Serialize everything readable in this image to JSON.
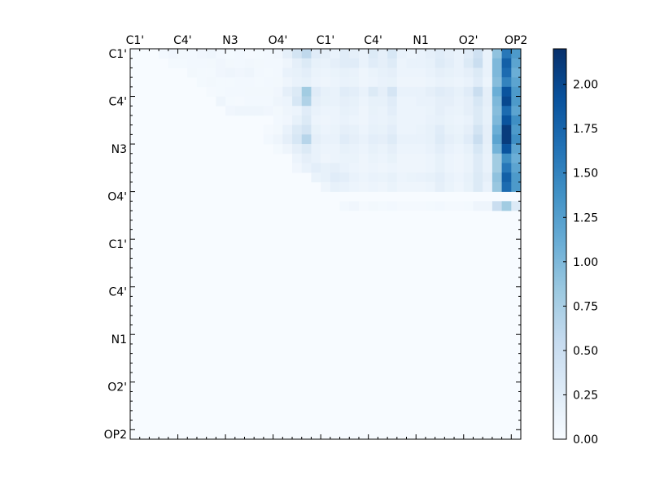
{
  "chart_data": {
    "type": "heatmap",
    "title": "",
    "xlabel": "",
    "ylabel": "",
    "matrix_size": 41,
    "x_tick_labels": [
      "C1'",
      "C4'",
      "N3",
      "O4'",
      "C1'",
      "C4'",
      "N1",
      "O2'",
      "OP2"
    ],
    "y_tick_labels": [
      "C1'",
      "C4'",
      "N3",
      "O4'",
      "C1'",
      "C4'",
      "N1",
      "O2'",
      "OP2"
    ],
    "colorbar": {
      "min": 0.0,
      "max": 2.2,
      "tick_labels": [
        "0.00",
        "0.25",
        "0.50",
        "0.75",
        "1.00",
        "1.25",
        "1.50",
        "1.75",
        "2.00"
      ],
      "tick_values": [
        0.0,
        0.25,
        0.5,
        0.75,
        1.0,
        1.25,
        1.5,
        1.75,
        2.0
      ],
      "colormap": "Blues"
    },
    "rows": [
      [
        0,
        0,
        0,
        0.05,
        0.08,
        0.06,
        0.05,
        0.08,
        0.1,
        0.05,
        0.04,
        0.05,
        0.03,
        0.04,
        0.05,
        0.08,
        0.2,
        0.4,
        0.6,
        0.25,
        0.2,
        0.15,
        0.25,
        0.2,
        0.15,
        0.3,
        0.2,
        0.35,
        0.15,
        0.12,
        0.15,
        0.2,
        0.25,
        0.2,
        0.15,
        0.25,
        0.45,
        0.15,
        0.9,
        1.6,
        1.3
      ],
      [
        0,
        0,
        0,
        0,
        0.04,
        0.04,
        0.05,
        0.05,
        0.06,
        0.08,
        0.06,
        0.05,
        0.07,
        0.06,
        0.05,
        0.05,
        0.1,
        0.2,
        0.3,
        0.18,
        0.15,
        0.2,
        0.25,
        0.25,
        0.15,
        0.25,
        0.2,
        0.28,
        0.12,
        0.15,
        0.15,
        0.18,
        0.28,
        0.22,
        0.15,
        0.3,
        0.5,
        0.15,
        1.0,
        1.8,
        1.2
      ],
      [
        0,
        0,
        0,
        0,
        0,
        0,
        0.06,
        0.04,
        0.04,
        0.08,
        0.1,
        0.08,
        0.1,
        0.05,
        0.04,
        0.05,
        0.15,
        0.18,
        0.22,
        0.14,
        0.12,
        0.14,
        0.18,
        0.15,
        0.1,
        0.14,
        0.18,
        0.2,
        0.12,
        0.12,
        0.12,
        0.15,
        0.2,
        0.18,
        0.15,
        0.2,
        0.3,
        0.15,
        1.0,
        1.7,
        1.1
      ],
      [
        0,
        0,
        0,
        0,
        0,
        0,
        0,
        0.04,
        0.06,
        0.04,
        0.04,
        0.05,
        0.05,
        0.04,
        0.05,
        0.06,
        0.1,
        0.15,
        0.18,
        0.12,
        0.1,
        0.12,
        0.15,
        0.14,
        0.1,
        0.12,
        0.15,
        0.16,
        0.1,
        0.1,
        0.1,
        0.12,
        0.15,
        0.14,
        0.12,
        0.15,
        0.25,
        0.12,
        0.95,
        1.5,
        1.2
      ],
      [
        0,
        0,
        0,
        0,
        0,
        0,
        0,
        0,
        0.03,
        0.04,
        0.05,
        0.05,
        0.06,
        0.06,
        0.06,
        0.08,
        0.2,
        0.3,
        0.8,
        0.25,
        0.18,
        0.15,
        0.25,
        0.22,
        0.15,
        0.3,
        0.2,
        0.38,
        0.15,
        0.15,
        0.15,
        0.2,
        0.25,
        0.22,
        0.18,
        0.25,
        0.5,
        0.2,
        1.1,
        1.9,
        1.3
      ],
      [
        0,
        0,
        0,
        0,
        0,
        0,
        0,
        0,
        0,
        0.1,
        0.04,
        0.03,
        0.05,
        0.05,
        0.05,
        0.1,
        0.12,
        0.35,
        0.7,
        0.2,
        0.16,
        0.15,
        0.2,
        0.18,
        0.12,
        0.18,
        0.18,
        0.25,
        0.12,
        0.12,
        0.15,
        0.15,
        0.2,
        0.2,
        0.15,
        0.2,
        0.35,
        0.2,
        1.0,
        2.0,
        1.3
      ],
      [
        0,
        0,
        0,
        0,
        0,
        0,
        0,
        0,
        0,
        0,
        0.08,
        0.1,
        0.1,
        0.1,
        0.08,
        0.06,
        0.1,
        0.12,
        0.25,
        0.15,
        0.12,
        0.12,
        0.18,
        0.15,
        0.1,
        0.16,
        0.14,
        0.22,
        0.12,
        0.12,
        0.12,
        0.14,
        0.2,
        0.15,
        0.14,
        0.2,
        0.3,
        0.18,
        0.95,
        1.7,
        1.2
      ],
      [
        0,
        0,
        0,
        0,
        0,
        0,
        0,
        0,
        0,
        0,
        0,
        0,
        0,
        0,
        0,
        0.05,
        0.08,
        0.18,
        0.3,
        0.12,
        0.1,
        0.12,
        0.15,
        0.12,
        0.1,
        0.15,
        0.14,
        0.18,
        0.12,
        0.12,
        0.12,
        0.15,
        0.18,
        0.14,
        0.12,
        0.15,
        0.3,
        0.18,
        1.0,
        1.9,
        1.4
      ],
      [
        0,
        0,
        0,
        0,
        0,
        0,
        0,
        0,
        0,
        0,
        0,
        0,
        0,
        0,
        0.03,
        0.06,
        0.15,
        0.3,
        0.4,
        0.16,
        0.12,
        0.14,
        0.2,
        0.18,
        0.12,
        0.18,
        0.16,
        0.22,
        0.12,
        0.12,
        0.14,
        0.18,
        0.25,
        0.16,
        0.14,
        0.2,
        0.4,
        0.2,
        1.1,
        2.1,
        1.3
      ],
      [
        0,
        0,
        0,
        0,
        0,
        0,
        0,
        0,
        0,
        0,
        0,
        0,
        0,
        0,
        0.05,
        0.1,
        0.2,
        0.35,
        0.65,
        0.2,
        0.15,
        0.15,
        0.25,
        0.2,
        0.15,
        0.22,
        0.2,
        0.28,
        0.15,
        0.15,
        0.15,
        0.18,
        0.28,
        0.2,
        0.16,
        0.25,
        0.5,
        0.2,
        1.2,
        2.1,
        1.4
      ],
      [
        0,
        0,
        0,
        0,
        0,
        0,
        0,
        0,
        0,
        0,
        0,
        0,
        0,
        0,
        0,
        0.04,
        0.1,
        0.2,
        0.3,
        0.15,
        0.12,
        0.12,
        0.18,
        0.15,
        0.12,
        0.18,
        0.14,
        0.2,
        0.12,
        0.12,
        0.12,
        0.15,
        0.22,
        0.15,
        0.12,
        0.18,
        0.35,
        0.18,
        1.05,
        1.9,
        1.2
      ],
      [
        0,
        0,
        0,
        0,
        0,
        0,
        0,
        0,
        0,
        0,
        0,
        0,
        0,
        0,
        0,
        0,
        0,
        0.12,
        0.2,
        0.15,
        0.1,
        0.12,
        0.14,
        0.14,
        0.1,
        0.14,
        0.12,
        0.16,
        0.1,
        0.1,
        0.1,
        0.12,
        0.18,
        0.12,
        0.1,
        0.14,
        0.28,
        0.15,
        0.8,
        1.4,
        1.1
      ],
      [
        0,
        0,
        0,
        0,
        0,
        0,
        0,
        0,
        0,
        0,
        0,
        0,
        0,
        0,
        0,
        0,
        0,
        0.08,
        0.15,
        0.22,
        0.18,
        0.2,
        0.15,
        0.12,
        0.1,
        0.12,
        0.1,
        0.12,
        0.1,
        0.1,
        0.1,
        0.12,
        0.18,
        0.12,
        0.1,
        0.14,
        0.28,
        0.15,
        0.8,
        1.6,
        1.2
      ],
      [
        0,
        0,
        0,
        0,
        0,
        0,
        0,
        0,
        0,
        0,
        0,
        0,
        0,
        0,
        0,
        0,
        0,
        0,
        0,
        0.14,
        0.18,
        0.25,
        0.22,
        0.15,
        0.12,
        0.15,
        0.14,
        0.18,
        0.12,
        0.14,
        0.15,
        0.18,
        0.22,
        0.15,
        0.12,
        0.18,
        0.3,
        0.2,
        0.9,
        1.8,
        1.3
      ],
      [
        0,
        0,
        0,
        0,
        0,
        0,
        0,
        0,
        0,
        0,
        0,
        0,
        0,
        0,
        0,
        0,
        0,
        0,
        0,
        0,
        0.1,
        0.18,
        0.15,
        0.12,
        0.1,
        0.12,
        0.1,
        0.14,
        0.1,
        0.1,
        0.1,
        0.12,
        0.2,
        0.14,
        0.1,
        0.16,
        0.3,
        0.15,
        0.85,
        1.7,
        1.3
      ],
      [
        0,
        0,
        0,
        0,
        0,
        0,
        0,
        0,
        0,
        0,
        0,
        0,
        0,
        0,
        0,
        0,
        0,
        0,
        0,
        0,
        0,
        0,
        0,
        0,
        0,
        0,
        0,
        0,
        0,
        0,
        0,
        0,
        0,
        0,
        0,
        0,
        0,
        0,
        0,
        0,
        0
      ],
      [
        0,
        0,
        0,
        0,
        0,
        0,
        0,
        0,
        0,
        0,
        0,
        0,
        0,
        0,
        0,
        0,
        0,
        0,
        0,
        0,
        0,
        0,
        0.05,
        0.08,
        0.03,
        0.06,
        0.04,
        0.05,
        0.03,
        0.03,
        0.03,
        0.04,
        0.05,
        0.03,
        0.03,
        0.04,
        0.1,
        0.1,
        0.5,
        0.8,
        0.3
      ],
      [
        0,
        0,
        0,
        0,
        0,
        0,
        0,
        0,
        0,
        0,
        0,
        0,
        0,
        0,
        0,
        0,
        0,
        0,
        0,
        0,
        0,
        0,
        0,
        0,
        0,
        0,
        0,
        0,
        0,
        0,
        0,
        0,
        0,
        0,
        0,
        0,
        0,
        0,
        0,
        0,
        0
      ]
    ]
  }
}
